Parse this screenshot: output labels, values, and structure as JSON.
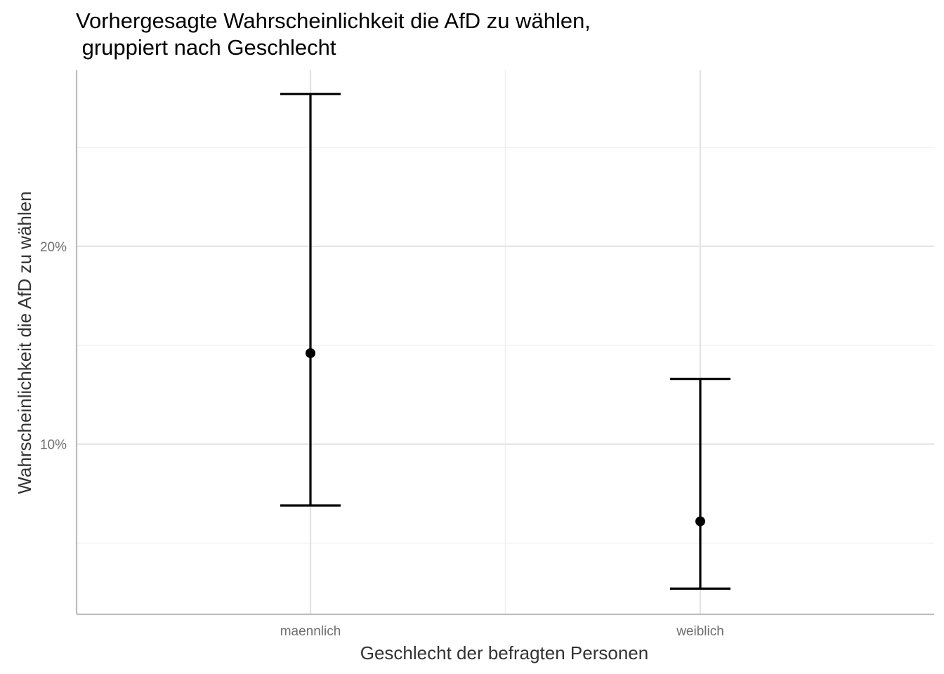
{
  "chart_data": {
    "type": "errorbar",
    "title": [
      "Vorhergesagte Wahrscheinlichkeit die AfD zu wählen,",
      " gruppiert nach Geschlecht"
    ],
    "xlabel": "Geschlecht der befragten Personen",
    "ylabel": "Wahrscheinlichkeit die AfD zu wählen",
    "categories": [
      "maennlich",
      "weiblich"
    ],
    "points": [
      {
        "category": "maennlich",
        "estimate": 0.146,
        "lower": 0.069,
        "upper": 0.277
      },
      {
        "category": "weiblich",
        "estimate": 0.061,
        "lower": 0.027,
        "upper": 0.133
      }
    ],
    "y_ticks": [
      {
        "value": 0.1,
        "label": "10%"
      },
      {
        "value": 0.2,
        "label": "20%"
      }
    ],
    "y_minor_gridlines": [
      0.05,
      0.15,
      0.25
    ],
    "ylim": [
      0.014,
      0.289
    ],
    "grid": true,
    "legend": "none",
    "colors": {
      "marks": "#000000",
      "major_grid": "#e3e3e3",
      "minor_grid": "#efefef",
      "axis_line": "#bdbdbd",
      "tick_text": "#6e6e6e",
      "axis_title_text": "#333333"
    }
  }
}
